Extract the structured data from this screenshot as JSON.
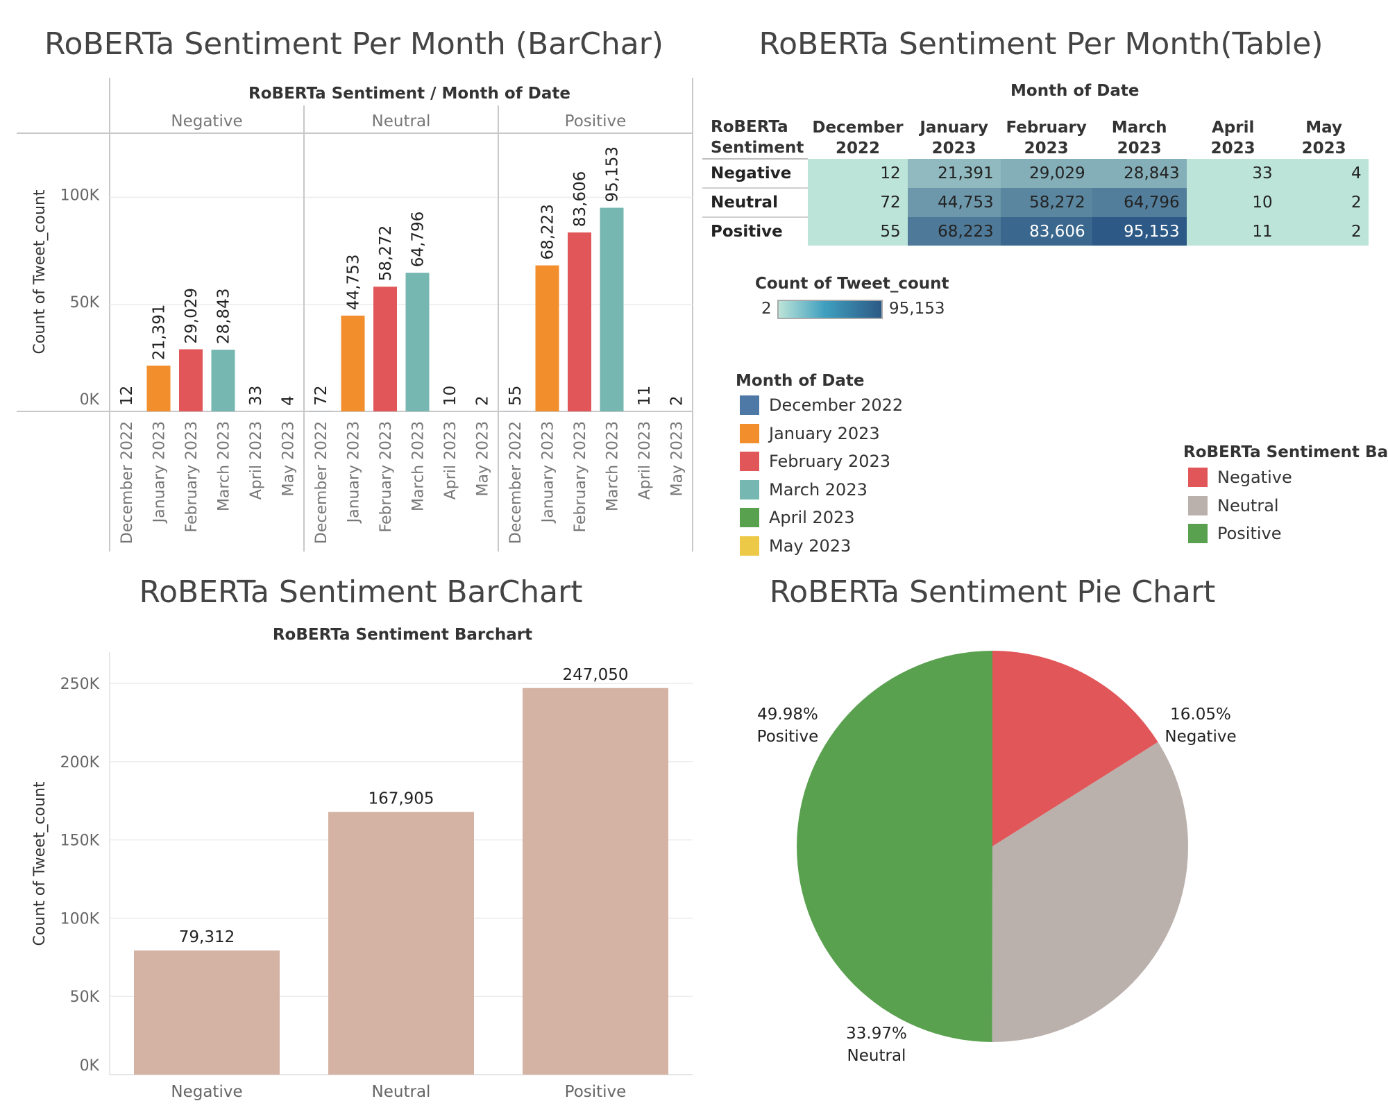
{
  "titles": {
    "top_left": "RoBERTa Sentiment Per Month (BarChar)",
    "top_right": "RoBERTa Sentiment Per Month(Table)",
    "bottom_left": "RoBERTa Sentiment  BarChart",
    "bottom_right": "RoBERTa Sentiment Pie Chart"
  },
  "colors": {
    "months": {
      "December 2022": "#4e79a7",
      "January 2023": "#f28e2b",
      "February 2023": "#e15759",
      "March 2023": "#76b7b2",
      "April 2023": "#59a14f",
      "May 2023": "#edc948"
    },
    "sentiments": {
      "Negative": "#e15759",
      "Neutral": "#bab0ac",
      "Positive": "#59a14f"
    },
    "summary_bar": "#d4b3a5",
    "heat_min": "#bce4d8",
    "heat_max": "#2c5985"
  },
  "chart_data": [
    {
      "type": "bar",
      "header": "RoBERTa Sentiment  /  Month of Date",
      "ylabel": "Count of Tweet_count",
      "ylim": [
        0,
        130000
      ],
      "yticks": [
        {
          "value": 0,
          "label": "0K"
        },
        {
          "value": 50000,
          "label": "50K"
        },
        {
          "value": 100000,
          "label": "100K"
        }
      ],
      "panels": [
        "Negative",
        "Neutral",
        "Positive"
      ],
      "categories": [
        "December 2022",
        "January 2023",
        "February 2023",
        "March 2023",
        "April 2023",
        "May 2023"
      ],
      "series": [
        {
          "name": "Negative",
          "values": [
            12,
            21391,
            29029,
            28843,
            33,
            4
          ],
          "labels": [
            "12",
            "21,391",
            "29,029",
            "28,843",
            "33",
            "4"
          ]
        },
        {
          "name": "Neutral",
          "values": [
            72,
            44753,
            58272,
            64796,
            10,
            2
          ],
          "labels": [
            "72",
            "44,753",
            "58,272",
            "64,796",
            "10",
            "2"
          ]
        },
        {
          "name": "Positive",
          "values": [
            55,
            68223,
            83606,
            95153,
            11,
            2
          ],
          "labels": [
            "55",
            "68,223",
            "83,606",
            "95,153",
            "11",
            "2"
          ]
        }
      ],
      "grid": true
    },
    {
      "type": "table",
      "header": "Month of Date",
      "row_header": [
        "RoBERTa",
        "Sentiment"
      ],
      "columns": [
        [
          "December",
          "2022"
        ],
        [
          "January",
          "2023"
        ],
        [
          "February",
          "2023"
        ],
        [
          "March",
          "2023"
        ],
        [
          "April 2023"
        ],
        [
          "May 2023"
        ]
      ],
      "rows": [
        {
          "name": "Negative",
          "values": [
            12,
            21391,
            29029,
            28843,
            33,
            4
          ],
          "labels": [
            "12",
            "21,391",
            "29,029",
            "28,843",
            "33",
            "4"
          ]
        },
        {
          "name": "Neutral",
          "values": [
            72,
            44753,
            58272,
            64796,
            10,
            2
          ],
          "labels": [
            "72",
            "44,753",
            "58,272",
            "64,796",
            "10",
            "2"
          ]
        },
        {
          "name": "Positive",
          "values": [
            55,
            68223,
            83606,
            95153,
            11,
            2
          ],
          "labels": [
            "55",
            "68,223",
            "83,606",
            "95,153",
            "11",
            "2"
          ]
        }
      ],
      "color_legend": {
        "title": "Count of Tweet_count",
        "min": 2,
        "max": 95153,
        "min_label": "2",
        "max_label": "95,153"
      }
    },
    {
      "type": "bar",
      "header": "RoBERTa Sentiment Barchart",
      "ylabel": "Count of Tweet_count",
      "ylim": [
        0,
        270000
      ],
      "yticks": [
        {
          "value": 0,
          "label": "0K"
        },
        {
          "value": 50000,
          "label": "50K"
        },
        {
          "value": 100000,
          "label": "100K"
        },
        {
          "value": 150000,
          "label": "150K"
        },
        {
          "value": 200000,
          "label": "200K"
        },
        {
          "value": 250000,
          "label": "250K"
        }
      ],
      "categories": [
        "Negative",
        "Neutral",
        "Positive"
      ],
      "values": [
        79312,
        167905,
        247050
      ],
      "labels": [
        "79,312",
        "167,905",
        "247,050"
      ],
      "grid": true
    },
    {
      "type": "pie",
      "slices": [
        {
          "name": "Negative",
          "percent": 16.05,
          "label": "16.05%"
        },
        {
          "name": "Neutral",
          "percent": 33.97,
          "label": "33.97%"
        },
        {
          "name": "Positive",
          "percent": 49.98,
          "label": "49.98%"
        }
      ]
    }
  ],
  "legends": {
    "month": {
      "title": "Month of Date",
      "items": [
        "December 2022",
        "January 2023",
        "February 2023",
        "March 2023",
        "April 2023",
        "May 2023"
      ]
    },
    "sentiment": {
      "title": "RoBERTa Sentiment Ba..",
      "items": [
        "Negative",
        "Neutral",
        "Positive"
      ]
    }
  }
}
